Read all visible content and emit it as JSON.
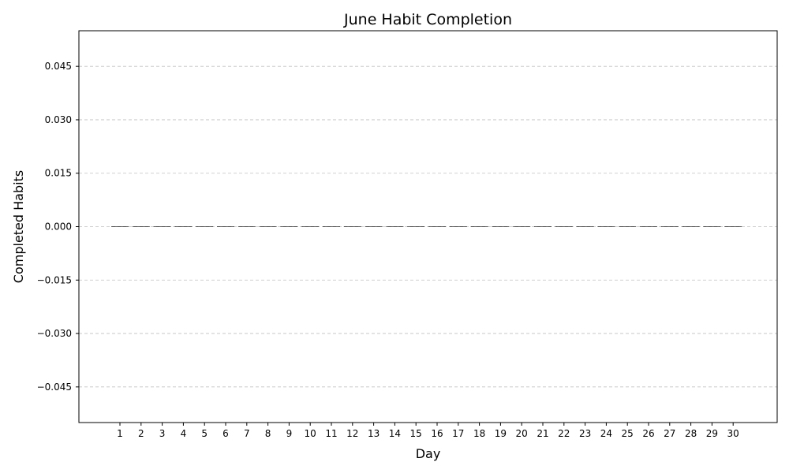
{
  "chart_data": {
    "type": "bar",
    "title": "June Habit Completion",
    "xlabel": "Day",
    "ylabel": "Completed Habits",
    "categories": [
      "1",
      "2",
      "3",
      "4",
      "5",
      "6",
      "7",
      "8",
      "9",
      "10",
      "11",
      "12",
      "13",
      "14",
      "15",
      "16",
      "17",
      "18",
      "19",
      "20",
      "21",
      "22",
      "23",
      "24",
      "25",
      "26",
      "27",
      "28",
      "29",
      "30"
    ],
    "values": [
      0,
      0,
      0,
      0,
      0,
      0,
      0,
      0,
      0,
      0,
      0,
      0,
      0,
      0,
      0,
      0,
      0,
      0,
      0,
      0,
      0,
      0,
      0,
      0,
      0,
      0,
      0,
      0,
      0,
      0
    ],
    "ylim": [
      -0.055,
      0.055
    ],
    "yticks": [
      -0.045,
      -0.03,
      -0.015,
      0.0,
      0.015,
      0.03,
      0.045
    ],
    "ytick_labels": [
      "−0.045",
      "−0.030",
      "−0.015",
      "0.000",
      "0.015",
      "0.030",
      "0.045"
    ],
    "grid": "y-dashed",
    "legend": "none",
    "bar_color": "#4a7ab5"
  }
}
